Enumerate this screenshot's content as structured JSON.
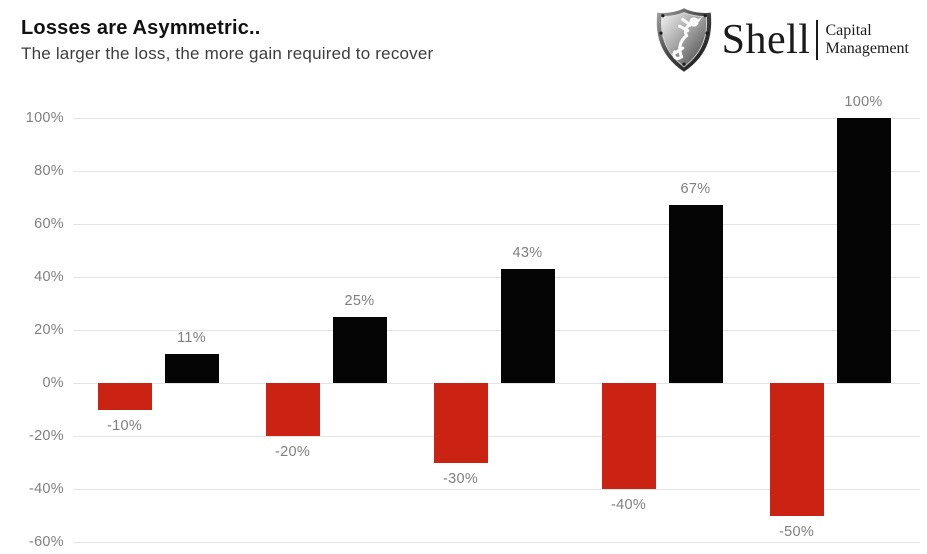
{
  "header": {
    "title": "Losses are Asymmetric..",
    "subtitle": "The larger the loss, the more gain required to recover"
  },
  "logo": {
    "brand": "Shell",
    "tagline_line1": "Capital",
    "tagline_line2": "Management",
    "icon": "shield-lion-icon"
  },
  "chart_data": {
    "type": "bar",
    "title": "Losses are Asymmetric..",
    "subtitle": "The larger the loss, the more gain required to recover",
    "series": [
      {
        "name": "loss",
        "color": "#ca2213",
        "values": [
          -10,
          -20,
          -30,
          -40,
          -50
        ],
        "data_labels": [
          "-10%",
          "-20%",
          "-30%",
          "-40%",
          "-50%"
        ],
        "label_position": "below-bar"
      },
      {
        "name": "gain-required-to-recover",
        "color": "#050505",
        "values": [
          11,
          25,
          43,
          67,
          100
        ],
        "data_labels": [
          "11%",
          "25%",
          "43%",
          "67%",
          "100%"
        ],
        "label_position": "above-bar"
      }
    ],
    "y_axis": {
      "tick_labels": [
        "100%",
        "80%",
        "60%",
        "40%",
        "20%",
        "0%",
        "-20%",
        "-40%",
        "-60%"
      ],
      "tick_values": [
        100,
        80,
        60,
        40,
        20,
        0,
        -20,
        -40,
        -60
      ],
      "ylim": [
        -60,
        100
      ]
    },
    "x_axis": {
      "tick_labels": []
    },
    "grid": true,
    "legend": false,
    "label_color": "#7f7f7f",
    "gridline_color": "#e4e4e4"
  }
}
